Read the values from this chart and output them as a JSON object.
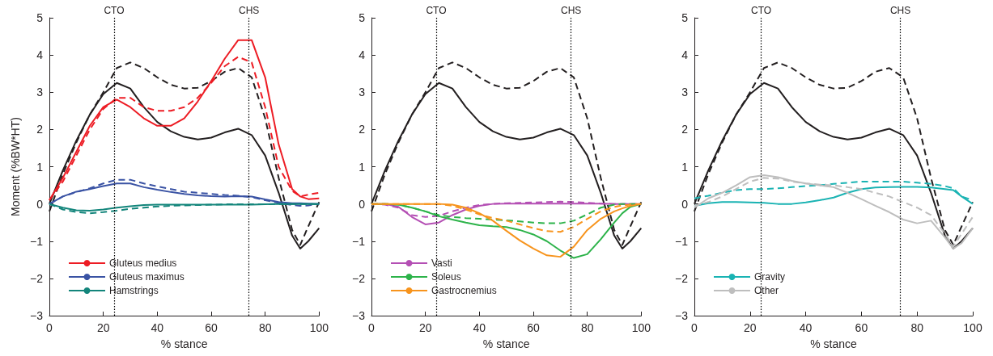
{
  "chart_data": [
    {
      "type": "line",
      "xlabel": "% stance",
      "ylabel": "Moment (%BW*HT)",
      "xlim": [
        0,
        100
      ],
      "xticks": [
        0,
        20,
        40,
        60,
        80,
        100
      ],
      "ylim": [
        -3,
        5
      ],
      "yticks": [
        -3,
        -2,
        -1,
        0,
        1,
        2,
        3,
        4,
        5
      ],
      "grid": false,
      "legend": "bottom left",
      "marker": "none",
      "x": [
        0,
        5,
        10,
        15,
        20,
        25,
        30,
        35,
        40,
        45,
        50,
        55,
        60,
        65,
        70,
        75,
        80,
        85,
        90,
        93,
        96,
        100
      ],
      "ref_lines": [
        {
          "axis": "x",
          "value": 24,
          "label": "CTO",
          "color": "#000000",
          "line_style": "dotted"
        },
        {
          "axis": "x",
          "value": 74,
          "label": "CHS",
          "color": "#000000",
          "line_style": "dotted"
        }
      ],
      "series": [
        {
          "color": "#231f20",
          "line_style": "solid",
          "values": [
            0,
            0.9,
            1.7,
            2.4,
            2.95,
            3.25,
            3.1,
            2.6,
            2.2,
            1.95,
            1.8,
            1.73,
            1.78,
            1.92,
            2.02,
            1.85,
            1.3,
            0.3,
            -0.85,
            -1.2,
            -1.0,
            -0.65
          ]
        },
        {
          "color": "#231f20",
          "line_style": "dashed",
          "values": [
            -0.2,
            0.8,
            1.65,
            2.4,
            3.0,
            3.65,
            3.8,
            3.65,
            3.4,
            3.2,
            3.1,
            3.12,
            3.3,
            3.55,
            3.65,
            3.4,
            2.3,
            0.7,
            -0.7,
            -1.1,
            -0.6,
            0.05
          ]
        },
        {
          "name": "Gluteus medius",
          "color": "#ed1c24",
          "line_style": "solid",
          "values": [
            0.1,
            0.7,
            1.4,
            2.1,
            2.6,
            2.8,
            2.6,
            2.3,
            2.1,
            2.1,
            2.3,
            2.75,
            3.3,
            3.9,
            4.4,
            4.4,
            3.4,
            1.6,
            0.4,
            0.2,
            0.13,
            0.15
          ]
        },
        {
          "color": "#ed1c24",
          "line_style": "dashed",
          "values": [
            0.1,
            0.6,
            1.3,
            2.0,
            2.55,
            2.85,
            2.85,
            2.6,
            2.5,
            2.5,
            2.6,
            2.85,
            3.25,
            3.7,
            3.95,
            3.8,
            2.6,
            1.0,
            0.35,
            0.2,
            0.25,
            0.3
          ]
        },
        {
          "name": "Gluteus maximus",
          "color": "#3a53a4",
          "line_style": "solid",
          "values": [
            0,
            0.2,
            0.33,
            0.4,
            0.48,
            0.55,
            0.55,
            0.45,
            0.38,
            0.32,
            0.27,
            0.23,
            0.21,
            0.2,
            0.21,
            0.2,
            0.12,
            0.05,
            0.02,
            0.02,
            0.01,
            0
          ]
        },
        {
          "color": "#3a53a4",
          "line_style": "dashed",
          "values": [
            0,
            0.2,
            0.32,
            0.42,
            0.55,
            0.65,
            0.65,
            0.55,
            0.47,
            0.4,
            0.33,
            0.3,
            0.27,
            0.24,
            0.22,
            0.18,
            0.1,
            0.03,
            -0.03,
            -0.05,
            -0.04,
            0
          ]
        },
        {
          "name": "Hamstrings",
          "color": "#13857b",
          "line_style": "solid",
          "values": [
            0,
            -0.1,
            -0.17,
            -0.18,
            -0.15,
            -0.1,
            -0.06,
            -0.03,
            -0.02,
            -0.02,
            -0.02,
            -0.02,
            -0.02,
            -0.02,
            -0.02,
            -0.02,
            -0.01,
            0,
            0,
            0,
            0,
            0
          ]
        },
        {
          "color": "#13857b",
          "line_style": "dashed",
          "values": [
            0,
            -0.15,
            -0.22,
            -0.25,
            -0.22,
            -0.18,
            -0.13,
            -0.1,
            -0.07,
            -0.05,
            -0.04,
            -0.03,
            -0.02,
            -0.01,
            -0.01,
            -0.01,
            -0.01,
            0,
            0,
            0,
            0,
            0
          ]
        }
      ]
    },
    {
      "type": "line",
      "xlabel": "% stance",
      "xlim": [
        0,
        100
      ],
      "xticks": [
        0,
        20,
        40,
        60,
        80,
        100
      ],
      "ylim": [
        -3,
        5
      ],
      "yticks": [
        -3,
        -2,
        -1,
        0,
        1,
        2,
        3,
        4,
        5
      ],
      "grid": false,
      "legend": "bottom left",
      "marker": "none",
      "x": [
        0,
        5,
        10,
        15,
        20,
        25,
        30,
        35,
        40,
        45,
        50,
        55,
        60,
        65,
        70,
        75,
        80,
        85,
        90,
        93,
        96,
        100
      ],
      "ref_lines": [
        {
          "axis": "x",
          "value": 24,
          "label": "CTO",
          "color": "#000000",
          "line_style": "dotted"
        },
        {
          "axis": "x",
          "value": 74,
          "label": "CHS",
          "color": "#000000",
          "line_style": "dotted"
        }
      ],
      "series": [
        {
          "color": "#231f20",
          "line_style": "solid",
          "values": [
            0,
            0.9,
            1.7,
            2.4,
            2.95,
            3.25,
            3.1,
            2.6,
            2.2,
            1.95,
            1.8,
            1.73,
            1.78,
            1.92,
            2.02,
            1.85,
            1.3,
            0.3,
            -0.85,
            -1.2,
            -1.0,
            -0.65
          ]
        },
        {
          "color": "#231f20",
          "line_style": "dashed",
          "values": [
            -0.2,
            0.8,
            1.65,
            2.4,
            3.0,
            3.65,
            3.8,
            3.65,
            3.4,
            3.2,
            3.1,
            3.12,
            3.3,
            3.55,
            3.65,
            3.4,
            2.3,
            0.7,
            -0.7,
            -1.1,
            -0.6,
            0.05
          ]
        },
        {
          "name": "Vasti",
          "color": "#b44fb4",
          "line_style": "solid",
          "values": [
            0,
            0,
            -0.08,
            -0.35,
            -0.55,
            -0.5,
            -0.3,
            -0.15,
            -0.05,
            0,
            0.01,
            0.01,
            0.01,
            0.01,
            0.01,
            0.01,
            0.01,
            0.01,
            0,
            0,
            0,
            0
          ]
        },
        {
          "color": "#b44fb4",
          "line_style": "dashed",
          "values": [
            0,
            -0.02,
            -0.1,
            -0.3,
            -0.35,
            -0.32,
            -0.2,
            -0.1,
            -0.03,
            0,
            0.02,
            0.03,
            0.04,
            0.05,
            0.06,
            0.05,
            0.03,
            0.01,
            0,
            0,
            0,
            0
          ]
        },
        {
          "name": "Soleus",
          "color": "#2db34a",
          "line_style": "solid",
          "values": [
            0,
            0,
            -0.02,
            -0.1,
            -0.2,
            -0.33,
            -0.42,
            -0.5,
            -0.57,
            -0.6,
            -0.62,
            -0.7,
            -0.82,
            -1.0,
            -1.25,
            -1.45,
            -1.35,
            -0.95,
            -0.5,
            -0.25,
            -0.08,
            0
          ]
        },
        {
          "color": "#2db34a",
          "line_style": "dashed",
          "values": [
            0,
            0,
            -0.02,
            -0.1,
            -0.2,
            -0.3,
            -0.35,
            -0.38,
            -0.4,
            -0.42,
            -0.44,
            -0.47,
            -0.5,
            -0.52,
            -0.52,
            -0.45,
            -0.28,
            -0.1,
            -0.02,
            0,
            0,
            0
          ]
        },
        {
          "name": "Gastrocnemius",
          "color": "#f7941d",
          "line_style": "solid",
          "values": [
            0,
            0,
            0,
            0,
            0,
            0,
            -0.02,
            -0.1,
            -0.25,
            -0.45,
            -0.72,
            -0.98,
            -1.2,
            -1.38,
            -1.42,
            -1.15,
            -0.7,
            -0.4,
            -0.2,
            -0.12,
            -0.05,
            0
          ]
        },
        {
          "color": "#f7941d",
          "line_style": "dashed",
          "values": [
            0,
            0,
            0,
            0,
            0,
            0,
            -0.05,
            -0.15,
            -0.28,
            -0.38,
            -0.45,
            -0.55,
            -0.65,
            -0.73,
            -0.75,
            -0.62,
            -0.4,
            -0.2,
            -0.08,
            -0.04,
            -0.02,
            0
          ]
        }
      ]
    },
    {
      "type": "line",
      "xlabel": "% stance",
      "xlim": [
        0,
        100
      ],
      "xticks": [
        0,
        20,
        40,
        60,
        80,
        100
      ],
      "ylim": [
        -3,
        5
      ],
      "yticks": [
        -3,
        -2,
        -1,
        0,
        1,
        2,
        3,
        4,
        5
      ],
      "grid": false,
      "legend": "bottom left",
      "marker": "none",
      "x": [
        0,
        5,
        10,
        15,
        20,
        25,
        30,
        35,
        40,
        45,
        50,
        55,
        60,
        65,
        70,
        75,
        80,
        85,
        90,
        93,
        96,
        100
      ],
      "ref_lines": [
        {
          "axis": "x",
          "value": 24,
          "label": "CTO",
          "color": "#000000",
          "line_style": "dotted"
        },
        {
          "axis": "x",
          "value": 74,
          "label": "CHS",
          "color": "#000000",
          "line_style": "dotted"
        }
      ],
      "series": [
        {
          "color": "#231f20",
          "line_style": "solid",
          "values": [
            0,
            0.9,
            1.7,
            2.4,
            2.95,
            3.25,
            3.1,
            2.6,
            2.2,
            1.95,
            1.8,
            1.73,
            1.78,
            1.92,
            2.02,
            1.85,
            1.3,
            0.3,
            -0.85,
            -1.2,
            -1.0,
            -0.65
          ]
        },
        {
          "color": "#231f20",
          "line_style": "dashed",
          "values": [
            -0.2,
            0.8,
            1.65,
            2.4,
            3.0,
            3.65,
            3.8,
            3.65,
            3.4,
            3.2,
            3.1,
            3.12,
            3.3,
            3.55,
            3.65,
            3.4,
            2.3,
            0.7,
            -0.7,
            -1.1,
            -0.6,
            0.05
          ]
        },
        {
          "name": "Gravity",
          "color": "#1ab3b3",
          "line_style": "solid",
          "values": [
            -0.05,
            0.02,
            0.05,
            0.05,
            0.04,
            0.03,
            0,
            0,
            0.04,
            0.1,
            0.17,
            0.3,
            0.4,
            0.44,
            0.45,
            0.46,
            0.46,
            0.44,
            0.4,
            0.37,
            0.2,
            0
          ]
        },
        {
          "color": "#1ab3b3",
          "line_style": "dashed",
          "values": [
            0.15,
            0.22,
            0.3,
            0.37,
            0.4,
            0.4,
            0.42,
            0.45,
            0.48,
            0.5,
            0.54,
            0.57,
            0.6,
            0.6,
            0.6,
            0.6,
            0.57,
            0.54,
            0.48,
            0.42,
            0.2,
            0.1
          ]
        },
        {
          "name": "Other",
          "color": "#bebebe",
          "line_style": "solid",
          "values": [
            -0.1,
            0.15,
            0.3,
            0.5,
            0.72,
            0.77,
            0.72,
            0.62,
            0.55,
            0.5,
            0.45,
            0.3,
            0.13,
            -0.05,
            -0.22,
            -0.42,
            -0.52,
            -0.45,
            -0.9,
            -1.2,
            -1.05,
            -0.65
          ]
        },
        {
          "color": "#bebebe",
          "line_style": "dashed",
          "values": [
            -0.05,
            0.05,
            0.2,
            0.4,
            0.6,
            0.7,
            0.68,
            0.6,
            0.55,
            0.52,
            0.5,
            0.45,
            0.4,
            0.3,
            0.2,
            0.05,
            -0.1,
            -0.3,
            -0.8,
            -1.15,
            -0.8,
            -0.35
          ]
        }
      ]
    }
  ]
}
